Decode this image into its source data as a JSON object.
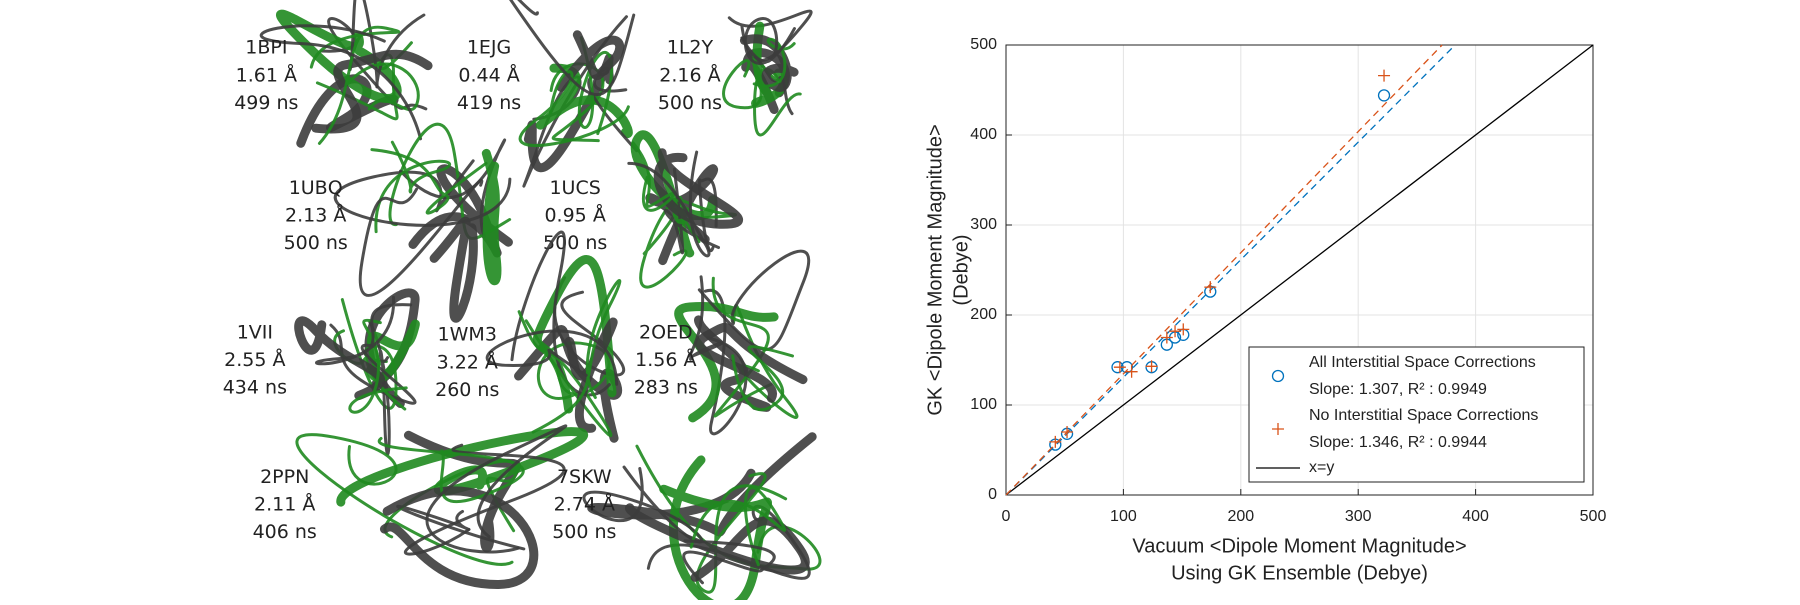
{
  "proteins": [
    {
      "id": "1BPI",
      "rmsd": "1.61 Å",
      "time": "499 ns"
    },
    {
      "id": "1EJG",
      "rmsd": "0.44 Å",
      "time": "419 ns"
    },
    {
      "id": "1L2Y",
      "rmsd": "2.16 Å",
      "time": "500 ns"
    },
    {
      "id": "1UBQ",
      "rmsd": "2.13 Å",
      "time": "500 ns"
    },
    {
      "id": "1UCS",
      "rmsd": "0.95 Å",
      "time": "500 ns"
    },
    {
      "id": "1VII",
      "rmsd": "2.55 Å",
      "time": "434 ns"
    },
    {
      "id": "1WM3",
      "rmsd": "3.22 Å",
      "time": "260 ns"
    },
    {
      "id": "2OED",
      "rmsd": "1.56 Å",
      "time": "283 ns"
    },
    {
      "id": "2PPN",
      "rmsd": "2.11 Å",
      "time": "406 ns"
    },
    {
      "id": "7SKW",
      "rmsd": "2.74 Å",
      "time": "500 ns"
    }
  ],
  "chart_data": {
    "type": "scatter",
    "xlabel": [
      "Vacuum <Dipole Moment Magnitude>",
      "Using GK Ensemble (Debye)"
    ],
    "ylabel": [
      "GK <Dipole Moment Magnitude>",
      "(Debye)"
    ],
    "xlim": [
      0,
      500
    ],
    "ylim": [
      0,
      500
    ],
    "xticks": [
      0,
      100,
      200,
      300,
      400,
      500
    ],
    "yticks": [
      0,
      100,
      200,
      300,
      400,
      500
    ],
    "grid": true,
    "series": [
      {
        "name": "All Interstitial Space Corrections",
        "color": "#0072bd",
        "marker": "o",
        "fit_label": "Slope: 1.307, R² : 0.9949",
        "slope": 1.307,
        "x": [
          42,
          52,
          95,
          103,
          124,
          137,
          144,
          151,
          174,
          322
        ],
        "values": [
          56,
          68,
          142,
          142,
          142,
          167,
          175,
          178,
          226,
          444
        ]
      },
      {
        "name": "No Interstitial Space Corrections",
        "color": "#d95319",
        "marker": "+",
        "fit_label": "Slope: 1.346, R² : 0.9944",
        "slope": 1.346,
        "x": [
          42,
          52,
          97,
          107,
          124,
          137,
          144,
          151,
          174,
          322
        ],
        "values": [
          59,
          70,
          142,
          137,
          143,
          175,
          182,
          184,
          231,
          466
        ]
      }
    ],
    "reference_line": {
      "name": "x=y",
      "color": "#000000"
    }
  }
}
